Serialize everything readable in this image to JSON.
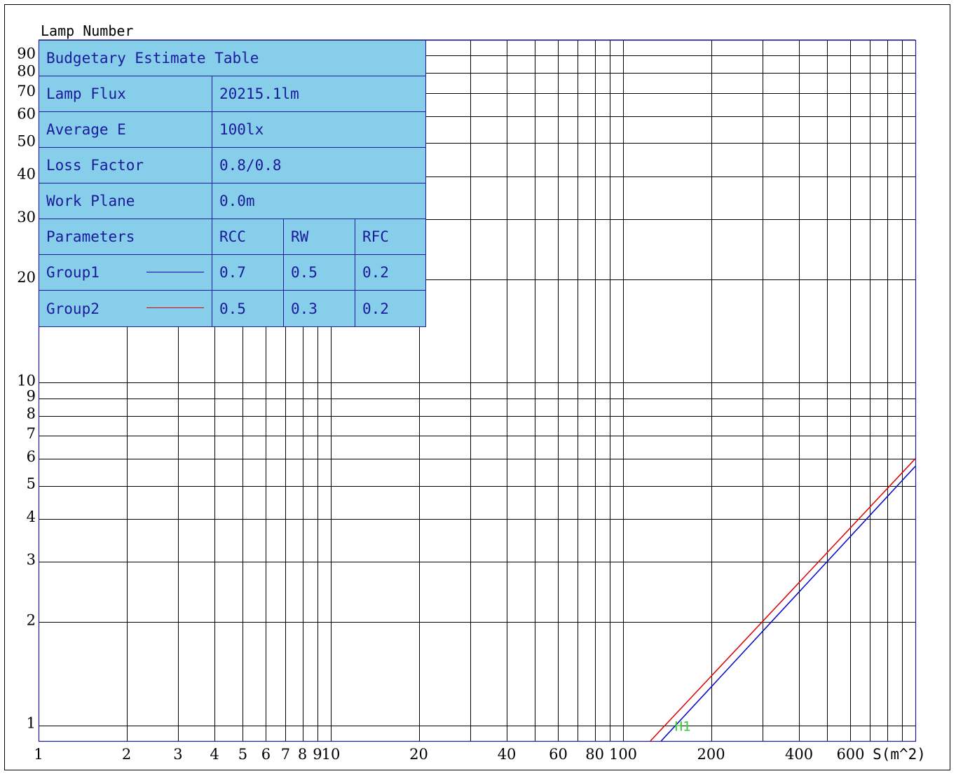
{
  "chart_data": {
    "type": "line",
    "ylabel": "Lamp Number",
    "xlabel": "S(m^2)",
    "x_scale": "log",
    "y_scale": "log",
    "xlim": [
      1,
      1000
    ],
    "ylim": [
      0.9,
      100
    ],
    "x_ticks": [
      1,
      2,
      3,
      4,
      5,
      6,
      7,
      8,
      9,
      10,
      20,
      40,
      60,
      80,
      100,
      200,
      400,
      600
    ],
    "x_tick_labels": [
      "1",
      "2",
      "3",
      "4",
      "5",
      "6",
      "7",
      "8",
      "9",
      "10",
      "20",
      "40",
      "60",
      "80",
      "100",
      "200",
      "400",
      "600"
    ],
    "x_grid": [
      1,
      2,
      3,
      4,
      5,
      6,
      7,
      8,
      9,
      10,
      20,
      30,
      40,
      50,
      60,
      70,
      80,
      90,
      100,
      200,
      300,
      400,
      500,
      600,
      700,
      800,
      900,
      1000
    ],
    "y_ticks": [
      1,
      2,
      3,
      4,
      5,
      6,
      7,
      8,
      9,
      10,
      20,
      30,
      40,
      50,
      60,
      70,
      80,
      90
    ],
    "y_tick_labels": [
      "1",
      "2",
      "3",
      "4",
      "5",
      "6",
      "7",
      "8",
      "9",
      "10",
      "20",
      "30",
      "40",
      "50",
      "60",
      "70",
      "80",
      "90"
    ],
    "grid": true,
    "series": [
      {
        "name": "Group1",
        "color": "#0000cc",
        "x": [
          135,
          1000
        ],
        "y": [
          0.9,
          5.7
        ]
      },
      {
        "name": "Group2",
        "color": "#dd0000",
        "x": [
          124,
          1000
        ],
        "y": [
          0.9,
          6.0
        ]
      }
    ],
    "annotation": {
      "text": "H1",
      "x": 160,
      "y": 1.0,
      "color": "#33cc33"
    }
  },
  "table": {
    "title": "Budgetary Estimate Table",
    "rows": [
      {
        "label": "Lamp Flux",
        "value": "20215.1lm"
      },
      {
        "label": "Average E",
        "value": "100lx"
      },
      {
        "label": "Loss Factor",
        "value": "0.8/0.8"
      },
      {
        "label": "Work Plane",
        "value": "0.0m"
      }
    ],
    "param_header": {
      "label": "Parameters",
      "c1": "RCC",
      "c2": "RW",
      "c3": "RFC"
    },
    "groups": [
      {
        "label": "Group1",
        "color": "#0000cc",
        "c1": "0.7",
        "c2": "0.5",
        "c3": "0.2"
      },
      {
        "label": "Group2",
        "color": "#dd0000",
        "c1": "0.5",
        "c2": "0.3",
        "c3": "0.2"
      }
    ]
  }
}
